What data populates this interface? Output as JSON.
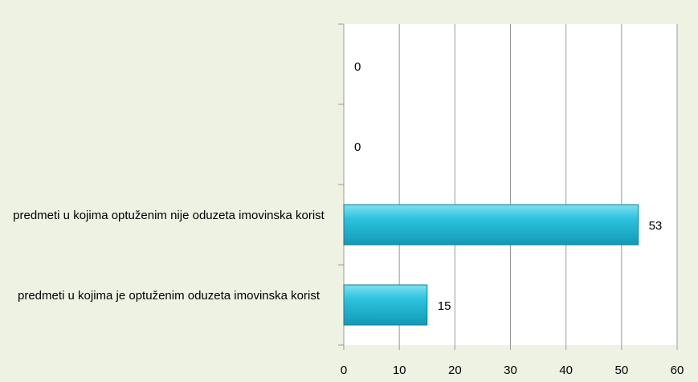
{
  "chart_data": {
    "type": "bar",
    "orientation": "horizontal",
    "categories": [
      null,
      null,
      "predmeti u kojima optuženim nije oduzeta imovinska korist",
      "predmeti u kojima je optuženim oduzeta imovinska korist"
    ],
    "values": [
      0,
      0,
      53,
      15
    ],
    "color": "#1cb5d2",
    "xlim": [
      0,
      60
    ],
    "xticks": [
      0,
      10,
      20,
      30,
      40,
      50,
      60
    ],
    "grid": true
  }
}
